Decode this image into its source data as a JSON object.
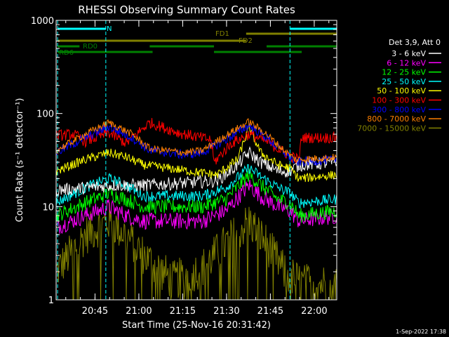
{
  "chart_data": {
    "type": "line",
    "title": "RHESSI Observing Summary Count Rates",
    "xlabel": "Start Time (25-Nov-16 20:31:42)",
    "ylabel": "Count Rate (s⁻¹ detector⁻¹)",
    "yscale": "log",
    "ylim": [
      1,
      1000
    ],
    "xlim_minutes": [
      0,
      96
    ],
    "x_start": "20:31:42",
    "y_ticks": [
      {
        "value": 1,
        "label": "1"
      },
      {
        "value": 10,
        "label": "10"
      },
      {
        "value": 100,
        "label": "100"
      },
      {
        "value": 1000,
        "label": "1000"
      }
    ],
    "x_ticks": [
      {
        "minute": 13.3,
        "label": "20:45"
      },
      {
        "minute": 28.3,
        "label": "21:00"
      },
      {
        "minute": 43.3,
        "label": "21:15"
      },
      {
        "minute": 58.3,
        "label": "21:30"
      },
      {
        "minute": 73.3,
        "label": "21:45"
      },
      {
        "minute": 88.3,
        "label": "22:00"
      }
    ],
    "vertical_markers_minutes": [
      0.5,
      17,
      80,
      96
    ],
    "flag_bars": [
      {
        "label": "N",
        "color": "#00ffff",
        "level": 1,
        "segments": [
          [
            0.5,
            17
          ],
          [
            80,
            96
          ]
        ]
      },
      {
        "label": "FD1",
        "color": "#808000",
        "level": 2,
        "segments": [
          [
            65,
            96
          ]
        ]
      },
      {
        "label": "FD2",
        "color": "#808000",
        "level": 3,
        "segments": [
          [
            0.5,
            65
          ]
        ]
      },
      {
        "label": "RD0",
        "color": "#008000",
        "level": 4,
        "segments": [
          [
            0.5,
            8
          ],
          [
            32,
            54
          ],
          [
            72,
            96
          ]
        ]
      },
      {
        "label": "RD6",
        "color": "#008000",
        "level": 5,
        "segments": [
          [
            0.5,
            33
          ],
          [
            54,
            84
          ]
        ]
      }
    ],
    "series": [
      {
        "name": "3 - 6 keV",
        "color": "#ffffff",
        "noise": 0.07,
        "points": [
          [
            0,
            15
          ],
          [
            10,
            16
          ],
          [
            20,
            17
          ],
          [
            30,
            17
          ],
          [
            45,
            18
          ],
          [
            55,
            19
          ],
          [
            62,
            28
          ],
          [
            66,
            38
          ],
          [
            70,
            30
          ],
          [
            76,
            24
          ],
          [
            80,
            24
          ],
          [
            83,
            28
          ],
          [
            96,
            30
          ]
        ]
      },
      {
        "name": "6 - 12 keV",
        "color": "#ff00ff",
        "noise": 0.09,
        "points": [
          [
            0,
            6
          ],
          [
            10,
            8
          ],
          [
            18,
            10
          ],
          [
            24,
            8
          ],
          [
            30,
            7
          ],
          [
            50,
            7
          ],
          [
            58,
            9
          ],
          [
            66,
            17
          ],
          [
            70,
            13
          ],
          [
            76,
            10
          ],
          [
            80,
            9
          ],
          [
            83,
            7
          ],
          [
            96,
            8
          ]
        ]
      },
      {
        "name": "12 - 25 keV",
        "color": "#00ff00",
        "noise": 0.08,
        "points": [
          [
            0,
            8
          ],
          [
            10,
            11
          ],
          [
            18,
            14
          ],
          [
            24,
            12
          ],
          [
            30,
            10
          ],
          [
            50,
            10
          ],
          [
            58,
            12
          ],
          [
            66,
            22
          ],
          [
            70,
            17
          ],
          [
            76,
            12
          ],
          [
            80,
            11
          ],
          [
            83,
            8
          ],
          [
            96,
            9
          ]
        ]
      },
      {
        "name": "25 - 50 keV",
        "color": "#00ffff",
        "noise": 0.06,
        "points": [
          [
            0,
            11
          ],
          [
            10,
            16
          ],
          [
            18,
            20
          ],
          [
            24,
            17
          ],
          [
            30,
            13
          ],
          [
            50,
            13
          ],
          [
            58,
            16
          ],
          [
            66,
            26
          ],
          [
            70,
            21
          ],
          [
            76,
            16
          ],
          [
            80,
            14
          ],
          [
            83,
            11
          ],
          [
            96,
            12
          ]
        ]
      },
      {
        "name": "50 - 100 keV",
        "color": "#ffff00",
        "noise": 0.05,
        "points": [
          [
            0,
            24
          ],
          [
            10,
            32
          ],
          [
            18,
            38
          ],
          [
            24,
            34
          ],
          [
            30,
            28
          ],
          [
            42,
            25
          ],
          [
            50,
            23
          ],
          [
            55,
            22
          ],
          [
            62,
            32
          ],
          [
            66,
            70
          ],
          [
            70,
            38
          ],
          [
            76,
            28
          ],
          [
            80,
            26
          ],
          [
            83,
            20
          ],
          [
            96,
            22
          ]
        ]
      },
      {
        "name": "100 - 300 keV",
        "color": "#ff0000",
        "noise": 0.06,
        "points": [
          [
            0,
            58
          ],
          [
            6,
            60
          ],
          [
            10,
            50
          ],
          [
            18,
            62
          ],
          [
            24,
            48
          ],
          [
            32,
            80
          ],
          [
            42,
            62
          ],
          [
            53,
            52
          ],
          [
            54,
            30
          ],
          [
            60,
            48
          ],
          [
            66,
            60
          ],
          [
            72,
            50
          ],
          [
            80,
            35
          ],
          [
            83,
            32
          ],
          [
            84,
            55
          ],
          [
            96,
            55
          ]
        ]
      },
      {
        "name": "300 - 800 keV",
        "color": "#0000ff",
        "noise": 0.05,
        "points": [
          [
            0,
            38
          ],
          [
            10,
            55
          ],
          [
            18,
            72
          ],
          [
            26,
            55
          ],
          [
            32,
            40
          ],
          [
            44,
            36
          ],
          [
            50,
            38
          ],
          [
            58,
            52
          ],
          [
            66,
            75
          ],
          [
            72,
            55
          ],
          [
            78,
            38
          ],
          [
            82,
            30
          ],
          [
            96,
            32
          ]
        ]
      },
      {
        "name": "800 - 7000 keV",
        "color": "#ff8000",
        "noise": 0.04,
        "points": [
          [
            0,
            40
          ],
          [
            10,
            60
          ],
          [
            18,
            80
          ],
          [
            26,
            60
          ],
          [
            32,
            42
          ],
          [
            44,
            38
          ],
          [
            50,
            40
          ],
          [
            58,
            58
          ],
          [
            66,
            82
          ],
          [
            72,
            60
          ],
          [
            78,
            40
          ],
          [
            82,
            32
          ],
          [
            96,
            34
          ]
        ]
      },
      {
        "name": "7000 - 15000 keV",
        "color": "#808000",
        "noise": 0.22,
        "points": [
          [
            0,
            2.0
          ],
          [
            10,
            5
          ],
          [
            18,
            7
          ],
          [
            24,
            5
          ],
          [
            30,
            3
          ],
          [
            40,
            1.6
          ],
          [
            50,
            2.2
          ],
          [
            58,
            4
          ],
          [
            66,
            7
          ],
          [
            72,
            4
          ],
          [
            78,
            2
          ],
          [
            84,
            1.5
          ],
          [
            96,
            1.5
          ]
        ]
      }
    ]
  },
  "legend": {
    "header": "Det 3,9, Att 0",
    "items": [
      {
        "label": "3 - 6 keV",
        "color": "#ffffff"
      },
      {
        "label": "6 - 12 keV",
        "color": "#ff00ff"
      },
      {
        "label": "12 - 25 keV",
        "color": "#00ff00"
      },
      {
        "label": "25 - 50 keV",
        "color": "#00ffff"
      },
      {
        "label": "50 - 100 keV",
        "color": "#ffff00"
      },
      {
        "label": "100 - 300 keV",
        "color": "#ff0000"
      },
      {
        "label": "300 - 800 keV",
        "color": "#0000ff"
      },
      {
        "label": "800 - 7000 keV",
        "color": "#ff8000"
      },
      {
        "label": "7000 - 15000 keV",
        "color": "#808000"
      }
    ]
  },
  "footer": {
    "timestamp": "1-Sep-2022 17:38"
  },
  "colors": {
    "background": "#000000",
    "axis": "#ffffff",
    "marker": "#00ffff"
  }
}
